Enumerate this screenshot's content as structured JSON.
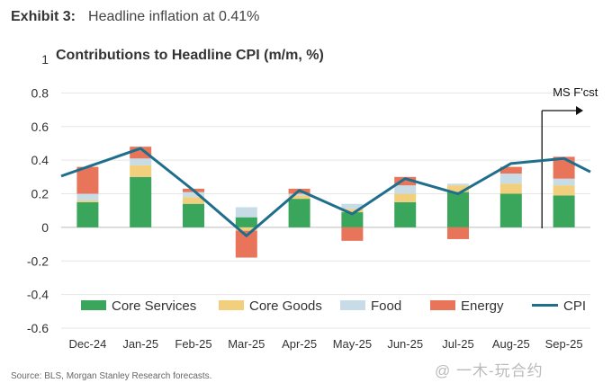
{
  "exhibit": {
    "label": "Exhibit 3:",
    "title": "Headline inflation at 0.41%"
  },
  "chart_data": {
    "type": "bar",
    "title": "Contributions to Headline CPI (m/m, %)",
    "ylim": [
      -0.6,
      1.0
    ],
    "yticks": [
      "1",
      "0.8",
      "0.6",
      "0.4",
      "0.2",
      "0",
      "-0.2",
      "-0.4",
      "-0.6"
    ],
    "categories": [
      "Dec-24",
      "Jan-25",
      "Feb-25",
      "Mar-25",
      "Apr-25",
      "May-25",
      "Jun-25",
      "Jul-25",
      "Aug-25",
      "Sep-25"
    ],
    "series": [
      {
        "name": "Core Services",
        "color": "#3aa65c",
        "values": [
          0.15,
          0.3,
          0.14,
          0.06,
          0.17,
          0.09,
          0.15,
          0.21,
          0.2,
          0.19
        ]
      },
      {
        "name": "Core Goods",
        "color": "#f1cf7c",
        "values": [
          0.01,
          0.07,
          0.04,
          -0.02,
          0.02,
          0.02,
          0.05,
          0.04,
          0.06,
          0.06
        ]
      },
      {
        "name": "Food",
        "color": "#c7dce6",
        "values": [
          0.04,
          0.04,
          0.03,
          0.06,
          0.01,
          0.03,
          0.05,
          0.01,
          0.06,
          0.04
        ]
      },
      {
        "name": "Energy",
        "color": "#e8745a",
        "values": [
          0.16,
          0.07,
          0.02,
          -0.16,
          0.03,
          -0.08,
          0.05,
          -0.07,
          0.04,
          0.13
        ]
      }
    ],
    "line": {
      "name": "CPI",
      "color": "#1f6e8c",
      "values": [
        0.36,
        0.47,
        0.22,
        -0.05,
        0.22,
        0.08,
        0.29,
        0.2,
        0.38,
        0.41
      ]
    },
    "annotation": "MS F'cst",
    "forecast_start": "Sep-25",
    "grid": true,
    "legend_position": "bottom"
  },
  "source": "Source: BLS, Morgan Stanley Research forecasts.",
  "watermark": "@ 一木-玩合约"
}
